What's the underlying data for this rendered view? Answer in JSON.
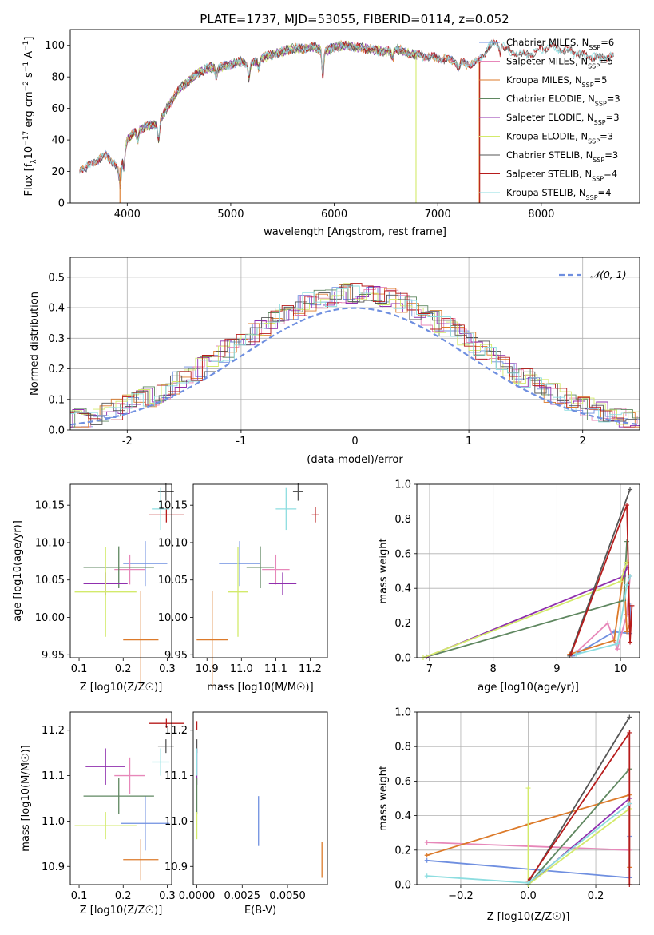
{
  "figure": {
    "title": "PLATE=1737, MJD=53055, FIBERID=0114, z=0.052"
  },
  "colors": {
    "chabrier_miles": "#6f8fe0",
    "salpeter_miles": "#e787b9",
    "kroupa_miles": "#dc7a2a",
    "chabrier_elodie": "#5f8760",
    "salpeter_elodie": "#8f2fae",
    "kroupa_elodie": "#d3ea6b",
    "chabrier_stelib": "#555555",
    "salpeter_stelib": "#b71c1c",
    "kroupa_stelib": "#8ddde0",
    "normal": "#6f8fe0",
    "grid": "#b0b0b0"
  },
  "chart_data": [
    {
      "id": "spectrum",
      "type": "line",
      "xlabel": "wavelength [Angstrom, rest frame]",
      "ylabel": "Flux [f_λ10^-17 erg cm^-2 s^-1 A^-1]",
      "xlim": [
        3450,
        8950
      ],
      "ylim": [
        0,
        110
      ],
      "xticks": [
        4000,
        5000,
        6000,
        7000,
        8000
      ],
      "yticks": [
        0,
        20,
        40,
        60,
        80,
        100
      ],
      "grid": false,
      "legend_position": "right",
      "legend": [
        {
          "key": "chabrier_miles",
          "label": "Chabrier MILES, N",
          "sub": "SSP",
          "val": "=6"
        },
        {
          "key": "salpeter_miles",
          "label": "Salpeter MILES, N",
          "sub": "SSP",
          "val": "=5"
        },
        {
          "key": "kroupa_miles",
          "label": "Kroupa MILES, N",
          "sub": "SSP",
          "val": "=5"
        },
        {
          "key": "chabrier_elodie",
          "label": "Chabrier ELODIE, N",
          "sub": "SSP",
          "val": "=3"
        },
        {
          "key": "salpeter_elodie",
          "label": "Salpeter ELODIE, N",
          "sub": "SSP",
          "val": "=3"
        },
        {
          "key": "kroupa_elodie",
          "label": "Kroupa ELODIE, N",
          "sub": "SSP",
          "val": "=3"
        },
        {
          "key": "chabrier_stelib",
          "label": "Chabrier STELIB, N",
          "sub": "SSP",
          "val": "=3"
        },
        {
          "key": "salpeter_stelib",
          "label": "Salpeter STELIB, N",
          "sub": "SSP",
          "val": "=4"
        },
        {
          "key": "kroupa_stelib",
          "label": "Kroupa STELIB, N",
          "sub": "SSP",
          "val": "=4"
        }
      ],
      "continuum": [
        [
          3600,
          22
        ],
        [
          3700,
          27
        ],
        [
          3800,
          30
        ],
        [
          3880,
          25
        ],
        [
          3920,
          20
        ],
        [
          3960,
          30
        ],
        [
          4000,
          40
        ],
        [
          4100,
          46
        ],
        [
          4200,
          49
        ],
        [
          4300,
          50
        ],
        [
          4400,
          62
        ],
        [
          4500,
          72
        ],
        [
          4600,
          78
        ],
        [
          4700,
          83
        ],
        [
          4800,
          86
        ],
        [
          4900,
          86
        ],
        [
          5000,
          88
        ],
        [
          5100,
          90
        ],
        [
          5200,
          88
        ],
        [
          5300,
          92
        ],
        [
          5400,
          94
        ],
        [
          5500,
          96
        ],
        [
          5600,
          98
        ],
        [
          5700,
          98
        ],
        [
          5800,
          99
        ],
        [
          5900,
          96
        ],
        [
          6000,
          99
        ],
        [
          6100,
          100
        ],
        [
          6200,
          99
        ],
        [
          6300,
          98
        ],
        [
          6400,
          97
        ],
        [
          6500,
          96
        ],
        [
          6600,
          98
        ],
        [
          6700,
          95
        ],
        [
          6800,
          94
        ],
        [
          6900,
          93
        ],
        [
          7000,
          92
        ],
        [
          7100,
          91
        ],
        [
          7200,
          89
        ],
        [
          7300,
          88
        ],
        [
          7400,
          90
        ],
        [
          7500,
          100
        ],
        [
          7600,
          102
        ],
        [
          7700,
          96
        ],
        [
          7800,
          94
        ],
        [
          7900,
          95
        ],
        [
          8000,
          98
        ],
        [
          8100,
          99
        ],
        [
          8200,
          97
        ],
        [
          8300,
          96
        ],
        [
          8400,
          94
        ],
        [
          8550,
          92
        ],
        [
          8700,
          93
        ]
      ],
      "absorption_lines": [
        [
          3934,
          12
        ],
        [
          3969,
          10
        ],
        [
          4102,
          6
        ],
        [
          4304,
          10
        ],
        [
          4861,
          6
        ],
        [
          5175,
          10
        ],
        [
          5270,
          5
        ],
        [
          5890,
          16
        ],
        [
          6563,
          6
        ],
        [
          7200,
          5
        ],
        [
          7600,
          6
        ]
      ],
      "model_ranges": {
        "miles": [
          3540,
          7410
        ],
        "elodie": [
          3900,
          6800
        ],
        "stelib": [
          3540,
          8700
        ]
      },
      "spikes": [
        {
          "key": "kroupa_elodie",
          "x": 6790
        },
        {
          "key": "kroupa_miles",
          "x": 7400
        },
        {
          "key": "salpeter_stelib",
          "x": 7405
        },
        {
          "key": "kroupa_miles",
          "x": 3930
        }
      ]
    },
    {
      "id": "residuals",
      "type": "histogram",
      "xlabel": "(data-model)/error",
      "ylabel": "Normed distribution",
      "xlim": [
        -2.5,
        2.5
      ],
      "ylim": [
        0,
        0.565
      ],
      "xticks": [
        -2,
        -1,
        0,
        1,
        2
      ],
      "yticks": [
        0.0,
        0.1,
        0.2,
        0.3,
        0.4,
        0.5
      ],
      "grid": true,
      "legend_position": "top-right",
      "legend_label": "𝒩(0, 1)",
      "bin_width": 0.1,
      "bin_start": -2.5
    },
    {
      "id": "age_vs_Z",
      "type": "errorbar",
      "xlabel": "Z [log10(Z/Z☉)]",
      "ylabel": "age  [log10(age/yr)]",
      "xlim": [
        0.08,
        0.31
      ],
      "ylim": [
        9.946,
        10.178
      ],
      "xticks": [
        0.1,
        0.2,
        0.3
      ],
      "yticks": [
        9.95,
        10.0,
        10.05,
        10.1,
        10.15
      ],
      "points": [
        {
          "key": "chabrier_miles",
          "x": 0.25,
          "xerr": 0.05,
          "y": 10.072,
          "yerr": 0.03
        },
        {
          "key": "salpeter_miles",
          "x": 0.215,
          "xerr": 0.035,
          "y": 10.064,
          "yerr": 0.02
        },
        {
          "key": "kroupa_miles",
          "x": 0.24,
          "xerr": 0.04,
          "y": 9.97,
          "yerr": 0.065
        },
        {
          "key": "chabrier_elodie",
          "x": 0.19,
          "xerr": 0.08,
          "y": 10.067,
          "yerr": 0.028
        },
        {
          "key": "salpeter_elodie",
          "x": 0.16,
          "xerr": 0.05,
          "y": 10.045,
          "yerr": 0.015
        },
        {
          "key": "kroupa_elodie",
          "x": 0.16,
          "xerr": 0.07,
          "y": 10.034,
          "yerr": 0.06
        },
        {
          "key": "chabrier_stelib",
          "x": 0.297,
          "xerr": 0.018,
          "y": 10.168,
          "yerr": 0.012
        },
        {
          "key": "salpeter_stelib",
          "x": 0.298,
          "xerr": 0.04,
          "y": 10.137,
          "yerr": 0.01
        },
        {
          "key": "kroupa_stelib",
          "x": 0.285,
          "xerr": 0.02,
          "y": 10.145,
          "yerr": 0.028
        }
      ]
    },
    {
      "id": "age_vs_mass",
      "type": "errorbar",
      "xlabel": "mass [log10(M/M☉)]",
      "ylabel": "",
      "xlim": [
        10.86,
        11.25
      ],
      "ylim": [
        9.946,
        10.178
      ],
      "xticks": [
        10.9,
        11.0,
        11.1,
        11.2
      ],
      "yticks": [
        9.95,
        10.0,
        10.05,
        10.1,
        10.15
      ],
      "points": [
        {
          "key": "chabrier_miles",
          "x": 10.995,
          "xerr": 0.06,
          "y": 10.072,
          "yerr": 0.03
        },
        {
          "key": "salpeter_miles",
          "x": 11.1,
          "xerr": 0.04,
          "y": 10.064,
          "yerr": 0.02
        },
        {
          "key": "kroupa_miles",
          "x": 10.915,
          "xerr": 0.045,
          "y": 9.97,
          "yerr": 0.065
        },
        {
          "key": "chabrier_elodie",
          "x": 11.055,
          "xerr": 0.04,
          "y": 10.067,
          "yerr": 0.028
        },
        {
          "key": "salpeter_elodie",
          "x": 11.12,
          "xerr": 0.04,
          "y": 10.045,
          "yerr": 0.015
        },
        {
          "key": "kroupa_elodie",
          "x": 10.99,
          "xerr": 0.03,
          "y": 10.034,
          "yerr": 0.06
        },
        {
          "key": "chabrier_stelib",
          "x": 11.165,
          "xerr": 0.015,
          "y": 10.168,
          "yerr": 0.012
        },
        {
          "key": "salpeter_stelib",
          "x": 11.215,
          "xerr": 0.01,
          "y": 10.137,
          "yerr": 0.01
        },
        {
          "key": "kroupa_stelib",
          "x": 11.13,
          "xerr": 0.03,
          "y": 10.145,
          "yerr": 0.028
        }
      ]
    },
    {
      "id": "weight_vs_age",
      "type": "line",
      "xlabel": "age  [log10(age/yr)]",
      "ylabel": "mass weight",
      "xlim": [
        6.8,
        10.3
      ],
      "ylim": [
        0,
        1.0
      ],
      "xticks": [
        7,
        8,
        9,
        10
      ],
      "yticks": [
        0.0,
        0.2,
        0.4,
        0.6,
        0.8,
        1.0
      ],
      "grid": true,
      "series": [
        {
          "key": "chabrier_miles",
          "x": [
            9.25,
            9.9,
            10.15,
            10.15
          ],
          "y": [
            0.01,
            0.15,
            0.14,
            0.3
          ]
        },
        {
          "key": "salpeter_miles",
          "x": [
            9.3,
            9.8,
            9.95,
            10.1,
            10.15
          ],
          "y": [
            0.03,
            0.2,
            0.05,
            0.25,
            0.47
          ]
        },
        {
          "key": "kroupa_miles",
          "x": [
            9.2,
            9.9,
            10.05,
            10.1,
            10.15
          ],
          "y": [
            0.02,
            0.1,
            0.5,
            0.15,
            0.2
          ]
        },
        {
          "key": "chabrier_elodie",
          "x": [
            6.95,
            10.05,
            10.1
          ],
          "y": [
            0.005,
            0.33,
            0.67
          ]
        },
        {
          "key": "salpeter_elodie",
          "x": [
            6.95,
            10.05,
            10.1
          ],
          "y": [
            0.005,
            0.47,
            0.52
          ]
        },
        {
          "key": "kroupa_elodie",
          "x": [
            6.9,
            10.0,
            10.1
          ],
          "y": [
            0.0,
            0.44,
            0.55
          ]
        },
        {
          "key": "chabrier_stelib",
          "x": [
            9.2,
            10.15
          ],
          "y": [
            0.01,
            0.97
          ]
        },
        {
          "key": "salpeter_stelib",
          "x": [
            9.22,
            10.1,
            10.15,
            10.18
          ],
          "y": [
            0.02,
            0.88,
            0.09,
            0.3
          ]
        },
        {
          "key": "kroupa_stelib",
          "x": [
            9.3,
            9.95,
            10.1,
            10.15
          ],
          "y": [
            0.02,
            0.08,
            0.42,
            0.47
          ]
        }
      ]
    },
    {
      "id": "mass_vs_Z",
      "type": "errorbar",
      "xlabel": "Z [log10(Z/Z☉)]",
      "ylabel": "mass [log10(M/M☉)]",
      "xlim": [
        0.08,
        0.31
      ],
      "ylim": [
        10.86,
        11.24
      ],
      "xticks": [
        0.1,
        0.2,
        0.3
      ],
      "yticks": [
        10.9,
        11.0,
        11.1,
        11.2
      ],
      "points": [
        {
          "key": "chabrier_miles",
          "x": 0.25,
          "xerr": 0.055,
          "y": 10.995,
          "yerr": 0.06
        },
        {
          "key": "salpeter_miles",
          "x": 0.215,
          "xerr": 0.035,
          "y": 11.1,
          "yerr": 0.04
        },
        {
          "key": "kroupa_miles",
          "x": 0.24,
          "xerr": 0.04,
          "y": 10.915,
          "yerr": 0.045
        },
        {
          "key": "chabrier_elodie",
          "x": 0.19,
          "xerr": 0.08,
          "y": 11.055,
          "yerr": 0.04
        },
        {
          "key": "salpeter_elodie",
          "x": 0.16,
          "xerr": 0.045,
          "y": 11.12,
          "yerr": 0.04
        },
        {
          "key": "kroupa_elodie",
          "x": 0.16,
          "xerr": 0.07,
          "y": 10.99,
          "yerr": 0.03
        },
        {
          "key": "chabrier_stelib",
          "x": 0.297,
          "xerr": 0.018,
          "y": 11.165,
          "yerr": 0.015
        },
        {
          "key": "salpeter_stelib",
          "x": 0.298,
          "xerr": 0.04,
          "y": 11.215,
          "yerr": 0.01
        },
        {
          "key": "kroupa_stelib",
          "x": 0.285,
          "xerr": 0.02,
          "y": 11.13,
          "yerr": 0.03
        }
      ]
    },
    {
      "id": "mass_vs_ebv",
      "type": "errorbar",
      "xlabel": "E(B-V)",
      "ylabel": "",
      "xlim": [
        -0.0002,
        0.0072
      ],
      "ylim": [
        10.86,
        11.24
      ],
      "xticks": [
        0.0,
        0.0025,
        0.005
      ],
      "xticklabels": [
        "0.0000",
        "0.0025",
        "0.0050"
      ],
      "yticks": [
        10.9,
        11.0,
        11.1,
        11.2
      ],
      "points": [
        {
          "key": "chabrier_miles",
          "x": 0.0034,
          "xerr": 0.0,
          "y": 11.0,
          "yerr": 0.055
        },
        {
          "key": "kroupa_miles",
          "x": 0.0069,
          "xerr": 0.0,
          "y": 10.915,
          "yerr": 0.04
        },
        {
          "key": "salpeter_stelib",
          "x": 0.0,
          "xerr": 0.0,
          "y": 11.21,
          "yerr": 0.01
        },
        {
          "key": "chabrier_stelib",
          "x": 0.0,
          "xerr": 0.0,
          "y": 11.165,
          "yerr": 0.015
        },
        {
          "key": "salpeter_elodie",
          "x": 0.0,
          "xerr": 0.0,
          "y": 11.12,
          "yerr": 0.04
        },
        {
          "key": "kroupa_stelib",
          "x": 0.0,
          "xerr": 0.0,
          "y": 11.13,
          "yerr": 0.03
        },
        {
          "key": "chabrier_elodie",
          "x": 0.0,
          "xerr": 0.0,
          "y": 11.055,
          "yerr": 0.04
        },
        {
          "key": "kroupa_elodie",
          "x": 0.0,
          "xerr": 0.0,
          "y": 10.99,
          "yerr": 0.03
        }
      ]
    },
    {
      "id": "weight_vs_Z",
      "type": "line",
      "xlabel": "Z [log10(Z/Z☉)]",
      "ylabel": "mass weight",
      "xlim": [
        -0.33,
        0.33
      ],
      "ylim": [
        0,
        1.0
      ],
      "xticks": [
        -0.2,
        0.0,
        0.2
      ],
      "yticks": [
        0.0,
        0.2,
        0.4,
        0.6,
        0.8,
        1.0
      ],
      "grid": true,
      "series": [
        {
          "key": "chabrier_miles",
          "x": [
            -0.3,
            0.3,
            0.3
          ],
          "y": [
            0.14,
            0.04,
            0.28
          ]
        },
        {
          "key": "salpeter_miles",
          "x": [
            -0.3,
            0.3,
            0.3
          ],
          "y": [
            0.245,
            0.2,
            0.47
          ]
        },
        {
          "key": "kroupa_miles",
          "x": [
            -0.3,
            0.0,
            0.3,
            0.3
          ],
          "y": [
            0.17,
            0.35,
            0.52,
            0.1
          ]
        },
        {
          "key": "chabrier_elodie",
          "x": [
            0.0,
            0.3
          ],
          "y": [
            0.0,
            0.67
          ]
        },
        {
          "key": "salpeter_elodie",
          "x": [
            0.0,
            0.3
          ],
          "y": [
            0.0,
            0.5
          ]
        },
        {
          "key": "kroupa_elodie",
          "x": [
            0.0,
            0.0,
            0.3
          ],
          "y": [
            0.56,
            0.0,
            0.44
          ]
        },
        {
          "key": "chabrier_stelib",
          "x": [
            0.0,
            0.3
          ],
          "y": [
            0.01,
            0.97
          ]
        },
        {
          "key": "salpeter_stelib",
          "x": [
            0.0,
            0.3,
            0.3
          ],
          "y": [
            0.02,
            0.88,
            0.0
          ]
        },
        {
          "key": "kroupa_stelib",
          "x": [
            -0.3,
            0.0,
            0.3
          ],
          "y": [
            0.05,
            0.01,
            0.47
          ]
        }
      ]
    }
  ]
}
